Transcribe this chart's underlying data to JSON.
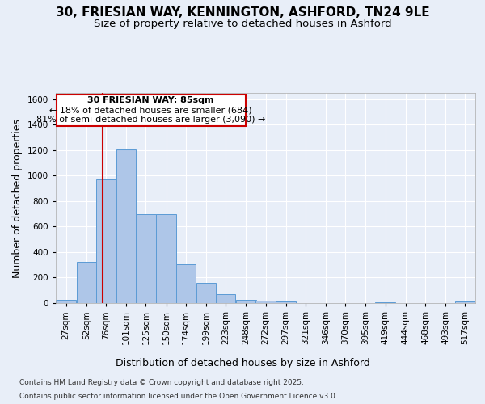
{
  "title_line1": "30, FRIESIAN WAY, KENNINGTON, ASHFORD, TN24 9LE",
  "title_line2": "Size of property relative to detached houses in Ashford",
  "xlabel": "Distribution of detached houses by size in Ashford",
  "ylabel": "Number of detached properties",
  "footer_line1": "Contains HM Land Registry data © Crown copyright and database right 2025.",
  "footer_line2": "Contains public sector information licensed under the Open Government Licence v3.0.",
  "annotation_line1": "30 FRIESIAN WAY: 85sqm",
  "annotation_line2": "← 18% of detached houses are smaller (684)",
  "annotation_line3": "81% of semi-detached houses are larger (3,090) →",
  "bar_color": "#aec6e8",
  "bar_edge_color": "#5b9bd5",
  "red_line_x": 85,
  "background_color": "#e8eef8",
  "plot_bg_color": "#e8eef8",
  "categories": [
    "27sqm",
    "52sqm",
    "76sqm",
    "101sqm",
    "125sqm",
    "150sqm",
    "174sqm",
    "199sqm",
    "223sqm",
    "248sqm",
    "272sqm",
    "297sqm",
    "321sqm",
    "346sqm",
    "370sqm",
    "395sqm",
    "419sqm",
    "444sqm",
    "468sqm",
    "493sqm",
    "517sqm"
  ],
  "bin_edges": [
    27,
    52,
    76,
    101,
    125,
    150,
    174,
    199,
    223,
    248,
    272,
    297,
    321,
    346,
    370,
    395,
    419,
    444,
    468,
    493,
    517
  ],
  "bin_width": 25,
  "values": [
    25,
    325,
    970,
    1205,
    700,
    700,
    305,
    160,
    70,
    25,
    20,
    15,
    0,
    0,
    0,
    0,
    8,
    0,
    0,
    0,
    10
  ],
  "ylim": [
    0,
    1650
  ],
  "yticks": [
    0,
    200,
    400,
    600,
    800,
    1000,
    1200,
    1400,
    1600
  ],
  "grid_color": "#ffffff",
  "annotation_box_color": "#ffffff",
  "annotation_box_edge": "#cc0000",
  "red_line_color": "#cc0000",
  "title_fontsize": 11,
  "subtitle_fontsize": 9.5,
  "axis_label_fontsize": 9,
  "tick_fontsize": 7.5,
  "annotation_fontsize": 8,
  "footer_fontsize": 6.5
}
